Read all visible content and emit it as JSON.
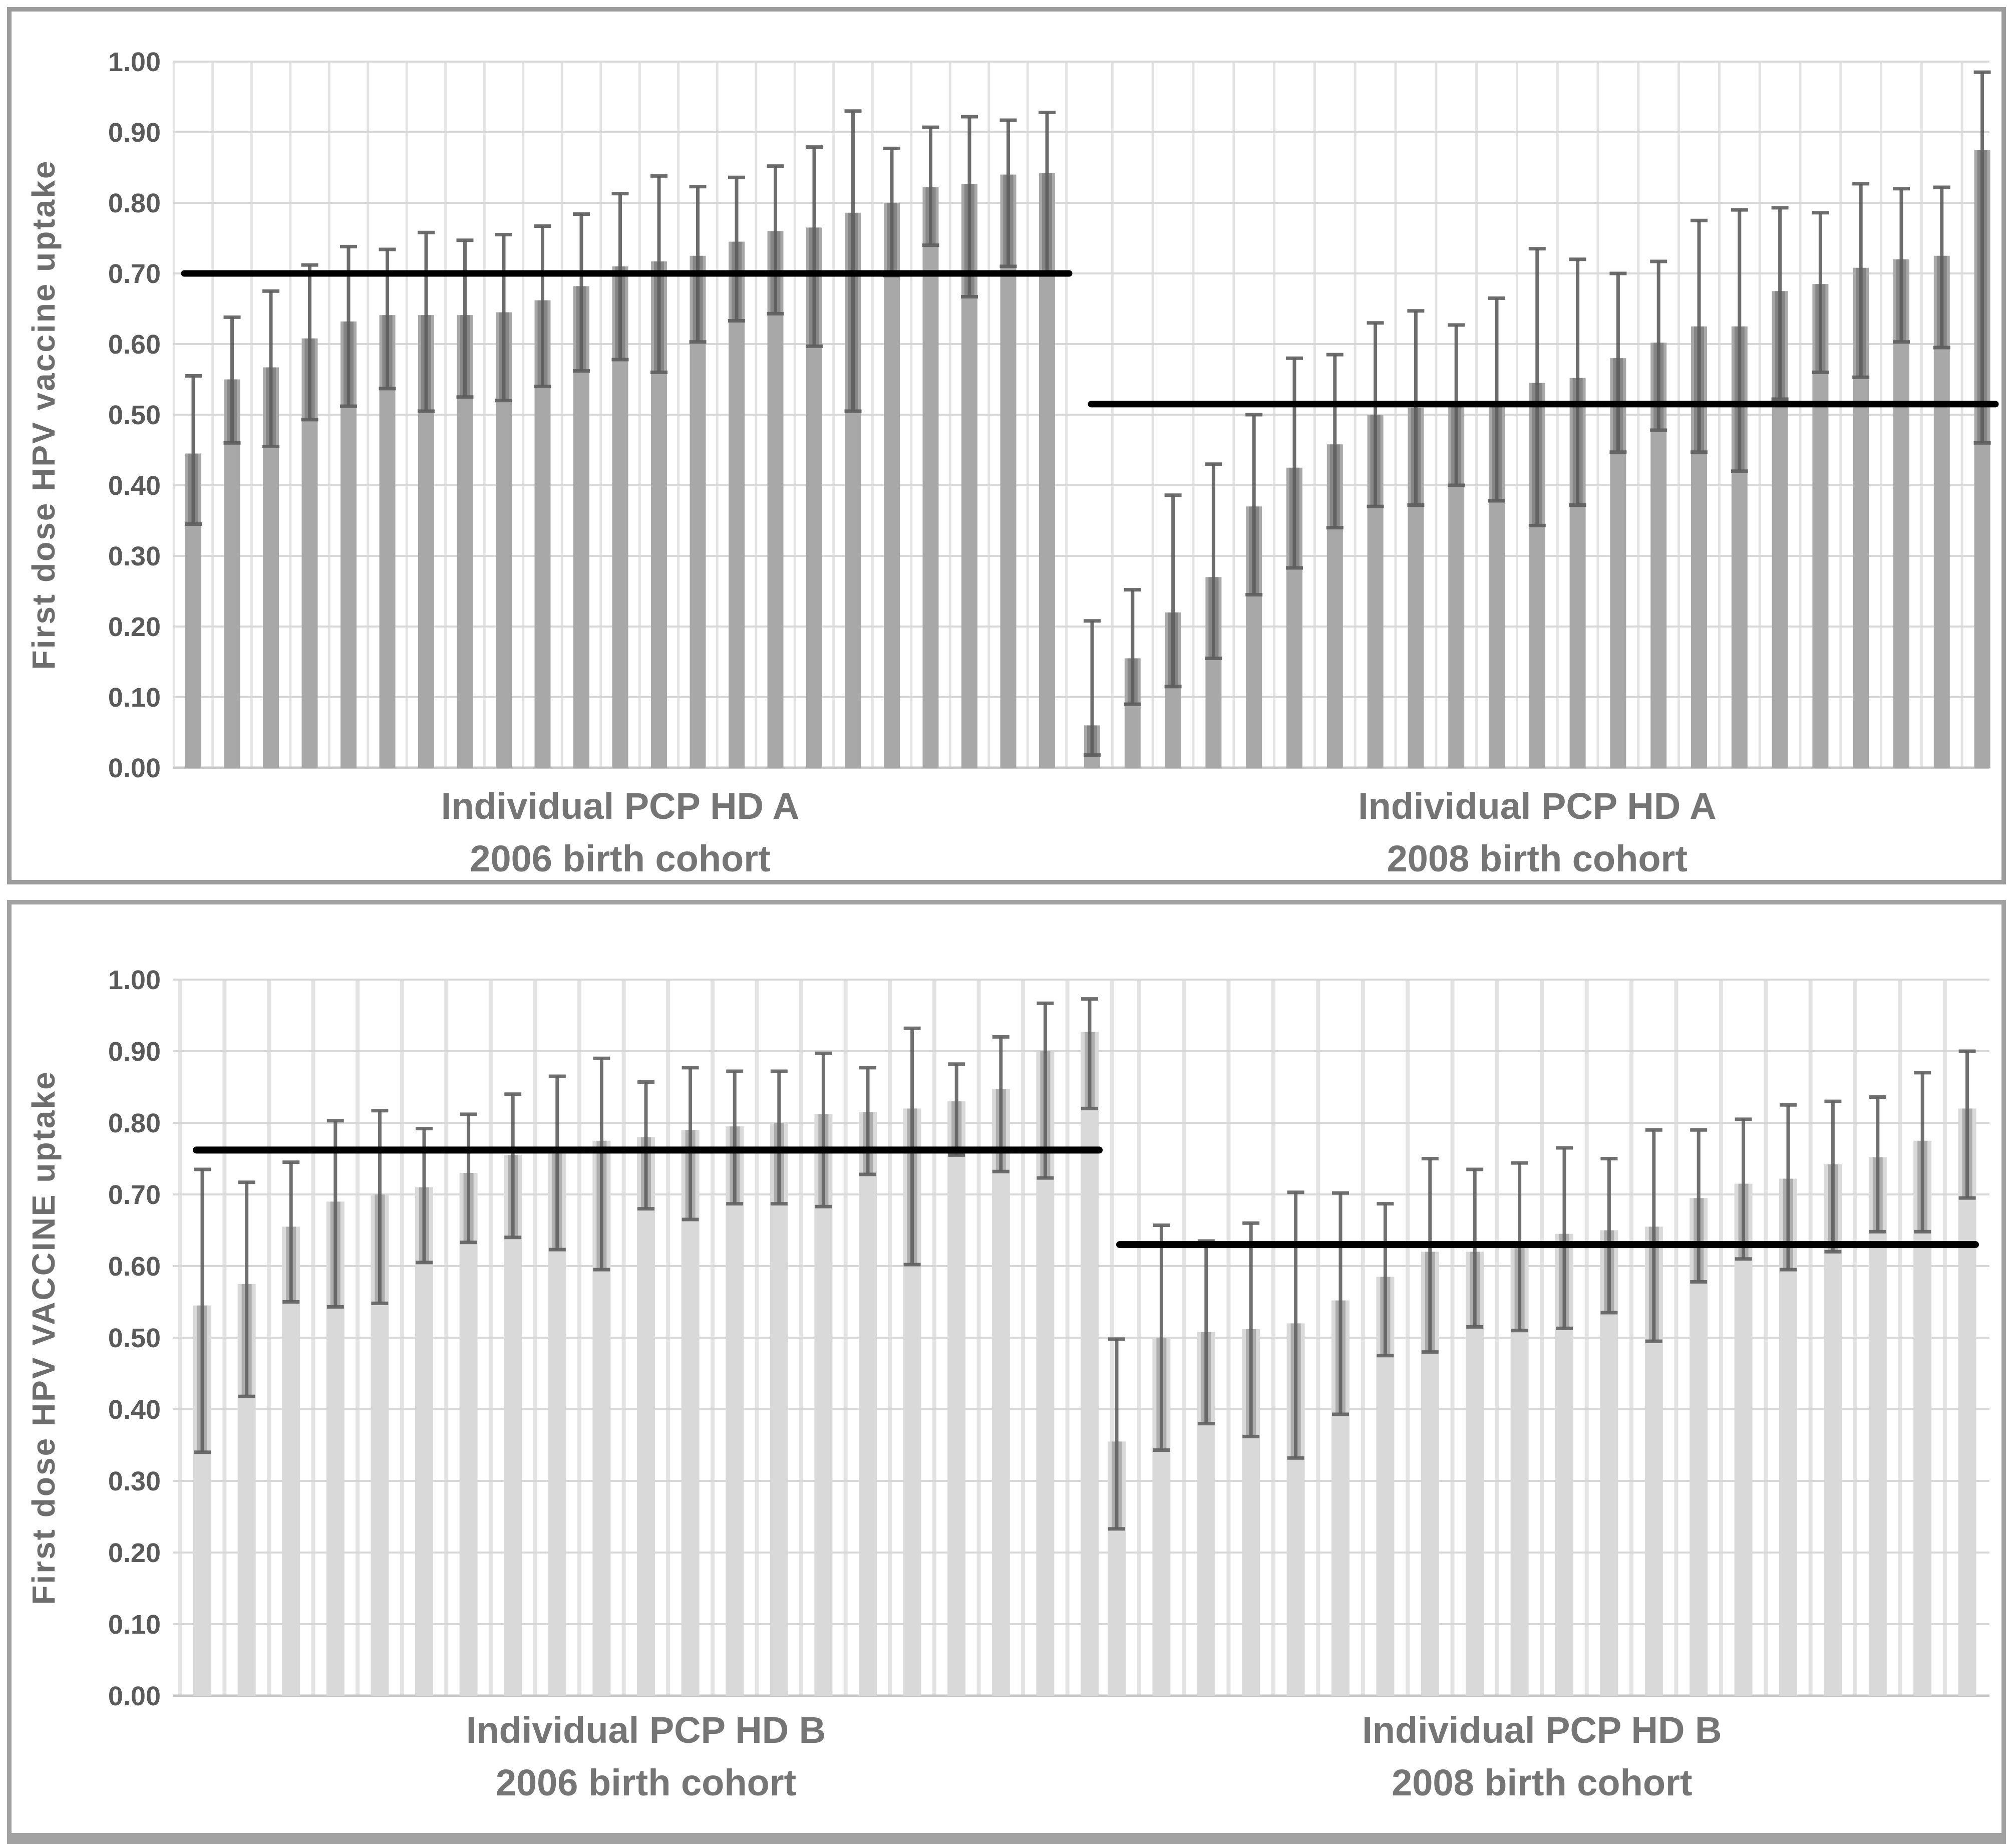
{
  "figure": {
    "background": "#ffffff",
    "panel_border_color": "#9c9c9c",
    "gridline_color": "#d8d8d8",
    "vertical_gridline_color": "#e3e3e3",
    "axis_line_color": "#c6c6c6",
    "tick_text_color": "#5a5a5a",
    "label_text_color": "#757575"
  },
  "chart_data": [
    {
      "type": "bar",
      "panel": "HD A",
      "ylabel": "First dose HPV vaccine uptake",
      "ylim": [
        0,
        1.0
      ],
      "ytick_labels": [
        "0.00",
        "0.10",
        "0.20",
        "0.30",
        "0.40",
        "0.50",
        "0.60",
        "0.70",
        "0.80",
        "0.90",
        "1.00"
      ],
      "grid": true,
      "legend": "none",
      "bar_color": "#a8a8a8",
      "error_bar_color": "#5e5e5e",
      "reference_line_color": "#000000",
      "groups": [
        {
          "label_line1": "Individual PCP HD A",
          "label_line2": "2006 birth cohort",
          "reference_line": 0.7,
          "values": [
            0.445,
            0.55,
            0.567,
            0.608,
            0.632,
            0.641,
            0.641,
            0.641,
            0.645,
            0.662,
            0.682,
            0.71,
            0.717,
            0.725,
            0.745,
            0.76,
            0.765,
            0.786,
            0.8,
            0.822,
            0.827,
            0.84,
            0.842
          ],
          "ci_low": [
            0.345,
            0.46,
            0.455,
            0.493,
            0.512,
            0.537,
            0.505,
            0.525,
            0.52,
            0.54,
            0.562,
            0.578,
            0.56,
            0.603,
            0.633,
            0.643,
            0.597,
            0.505,
            0.697,
            0.74,
            0.667,
            0.71,
            0.698
          ],
          "ci_high": [
            0.555,
            0.638,
            0.675,
            0.712,
            0.738,
            0.734,
            0.758,
            0.747,
            0.755,
            0.767,
            0.784,
            0.813,
            0.838,
            0.823,
            0.836,
            0.852,
            0.879,
            0.93,
            0.877,
            0.907,
            0.922,
            0.917,
            0.928
          ]
        },
        {
          "label_line1": "Individual PCP HD A",
          "label_line2": "2008 birth cohort",
          "reference_line": 0.515,
          "values": [
            0.06,
            0.155,
            0.22,
            0.27,
            0.37,
            0.425,
            0.458,
            0.5,
            0.51,
            0.515,
            0.515,
            0.545,
            0.552,
            0.58,
            0.602,
            0.625,
            0.625,
            0.675,
            0.685,
            0.708,
            0.72,
            0.725,
            0.875
          ],
          "ci_low": [
            0.018,
            0.09,
            0.115,
            0.155,
            0.245,
            0.283,
            0.34,
            0.37,
            0.372,
            0.4,
            0.378,
            0.343,
            0.372,
            0.447,
            0.478,
            0.447,
            0.42,
            0.522,
            0.56,
            0.553,
            0.603,
            0.595,
            0.46
          ],
          "ci_high": [
            0.208,
            0.252,
            0.386,
            0.43,
            0.5,
            0.58,
            0.585,
            0.63,
            0.647,
            0.627,
            0.665,
            0.735,
            0.72,
            0.7,
            0.717,
            0.775,
            0.79,
            0.793,
            0.786,
            0.827,
            0.82,
            0.822,
            0.985
          ]
        }
      ]
    },
    {
      "type": "bar",
      "panel": "HD B",
      "ylabel": "First dose HPV VACCINE uptake",
      "ylim": [
        0,
        1.0
      ],
      "ytick_labels": [
        "0.00",
        "0.10",
        "0.20",
        "0.30",
        "0.40",
        "0.50",
        "0.60",
        "0.70",
        "0.80",
        "0.90",
        "1.00"
      ],
      "grid": true,
      "legend": "none",
      "bar_color": "#d9d9d9",
      "error_bar_color": "#616161",
      "reference_line_color": "#000000",
      "groups": [
        {
          "label_line1": "Individual PCP HD B",
          "label_line2": "2006 birth cohort",
          "reference_line": 0.762,
          "values": [
            0.545,
            0.575,
            0.655,
            0.69,
            0.7,
            0.71,
            0.73,
            0.755,
            0.757,
            0.775,
            0.78,
            0.79,
            0.795,
            0.8,
            0.812,
            0.815,
            0.82,
            0.83,
            0.847,
            0.9,
            0.927
          ],
          "ci_low": [
            0.34,
            0.418,
            0.55,
            0.543,
            0.548,
            0.605,
            0.633,
            0.64,
            0.623,
            0.595,
            0.68,
            0.665,
            0.687,
            0.687,
            0.683,
            0.728,
            0.602,
            0.755,
            0.732,
            0.723,
            0.82
          ],
          "ci_high": [
            0.735,
            0.717,
            0.745,
            0.803,
            0.817,
            0.792,
            0.812,
            0.84,
            0.865,
            0.89,
            0.857,
            0.877,
            0.872,
            0.872,
            0.897,
            0.877,
            0.932,
            0.882,
            0.92,
            0.967,
            0.973
          ]
        },
        {
          "label_line1": "Individual PCP HD B",
          "label_line2": "2008 birth cohort",
          "reference_line": 0.63,
          "values": [
            0.355,
            0.5,
            0.508,
            0.512,
            0.52,
            0.552,
            0.585,
            0.62,
            0.62,
            0.625,
            0.645,
            0.65,
            0.655,
            0.695,
            0.715,
            0.722,
            0.742,
            0.752,
            0.775,
            0.82
          ],
          "ci_low": [
            0.233,
            0.343,
            0.38,
            0.362,
            0.332,
            0.393,
            0.475,
            0.48,
            0.515,
            0.51,
            0.513,
            0.535,
            0.495,
            0.578,
            0.61,
            0.595,
            0.62,
            0.648,
            0.648,
            0.695
          ],
          "ci_high": [
            0.498,
            0.657,
            0.635,
            0.66,
            0.703,
            0.702,
            0.687,
            0.75,
            0.735,
            0.744,
            0.765,
            0.75,
            0.79,
            0.79,
            0.805,
            0.825,
            0.83,
            0.836,
            0.87,
            0.9
          ]
        }
      ]
    }
  ]
}
